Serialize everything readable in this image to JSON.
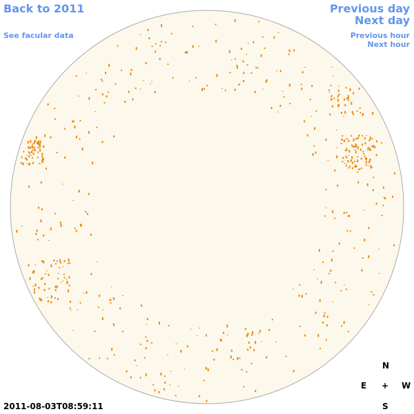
{
  "header": {
    "back": "Back to 2011",
    "facular": "See facular data",
    "previous_day": "Previous day",
    "next_day": "Next day",
    "previous_hour": "Previous hour",
    "next_hour": "Next hour"
  },
  "timestamp": "2011-08-03T08:59:11",
  "compass": {
    "north": "N",
    "east": "E",
    "center": "+",
    "west": "W",
    "south": "S"
  }
}
